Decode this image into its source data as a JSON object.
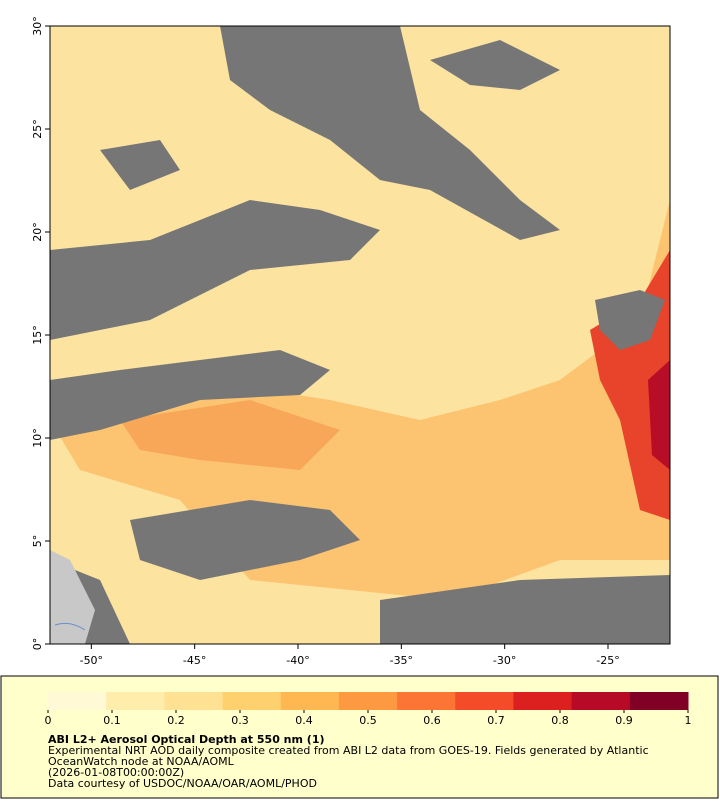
{
  "map": {
    "lon_range": [
      -52,
      -22
    ],
    "lat_range": [
      0,
      30
    ],
    "lon_ticks": [
      {
        "value": -50,
        "label": "-50°"
      },
      {
        "value": -45,
        "label": "-45°"
      },
      {
        "value": -40,
        "label": "-40°"
      },
      {
        "value": -35,
        "label": "-35°"
      },
      {
        "value": -30,
        "label": "-30°"
      },
      {
        "value": -25,
        "label": "-25°"
      }
    ],
    "lat_ticks": [
      {
        "value": 0,
        "label": "0°"
      },
      {
        "value": 5,
        "label": "5°"
      },
      {
        "value": 10,
        "label": "10°"
      },
      {
        "value": 15,
        "label": "15°"
      },
      {
        "value": 20,
        "label": "20°"
      },
      {
        "value": 25,
        "label": "25°"
      },
      {
        "value": 30,
        "label": "30°"
      }
    ]
  },
  "legend": {
    "title": "ABI L2+ Aerosol Optical Depth at 550 nm (1)",
    "lines": [
      "Experimental NRT AOD daily composite created from ABI L2 data from GOES-19. Fields generated by Atlantic",
      "OceanWatch node at NOAA/AOML",
      "(2026-01-08T00:00:00Z)",
      "Data courtesy of USDOC/NOAA/OAR/AOML/PHOD"
    ],
    "colorbar": {
      "range": [
        0,
        1
      ],
      "ticks": [
        0,
        0.1,
        0.2,
        0.3,
        0.4,
        0.5,
        0.6,
        0.7,
        0.8,
        0.9,
        1
      ],
      "colors": [
        "#fff9d6",
        "#ffedac",
        "#fee192",
        "#fed06e",
        "#feb751",
        "#fd9a41",
        "#fc7535",
        "#f44b28",
        "#dc1f1f",
        "#b70a26",
        "#800026"
      ]
    }
  }
}
